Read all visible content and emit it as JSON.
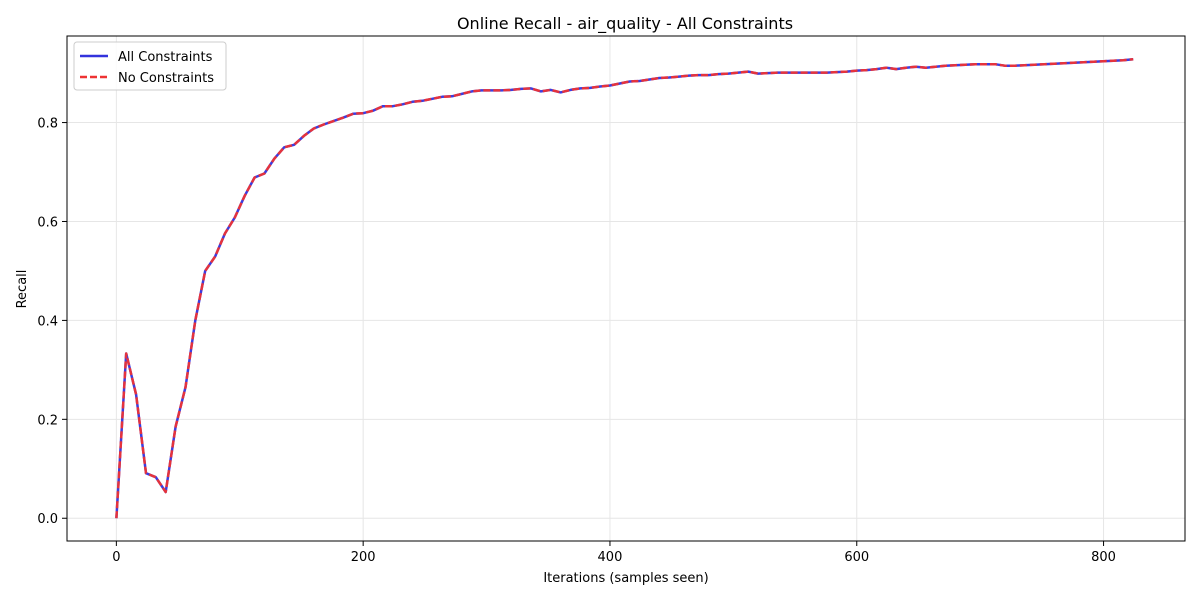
{
  "chart_data": {
    "type": "line",
    "title": "Online Recall - air_quality - All Constraints",
    "xlabel": "Iterations (samples seen)",
    "ylabel": "Recall",
    "xlim": [
      -40,
      866
    ],
    "ylim": [
      -0.046,
      0.975
    ],
    "xticks": [
      0,
      200,
      400,
      600,
      800
    ],
    "yticks": [
      0.0,
      0.2,
      0.4,
      0.6,
      0.8
    ],
    "ytick_labels": [
      "0.0",
      "0.2",
      "0.4",
      "0.6",
      "0.8"
    ],
    "grid": true,
    "legend_position": "upper-left",
    "x": [
      0,
      8,
      16,
      24,
      32,
      40,
      48,
      56,
      64,
      72,
      80,
      88,
      96,
      104,
      112,
      120,
      128,
      136,
      144,
      152,
      160,
      168,
      176,
      184,
      192,
      200,
      208,
      216,
      224,
      232,
      240,
      248,
      256,
      264,
      272,
      280,
      288,
      296,
      304,
      312,
      320,
      328,
      336,
      344,
      352,
      360,
      368,
      376,
      384,
      392,
      400,
      408,
      416,
      424,
      432,
      440,
      448,
      456,
      464,
      472,
      480,
      488,
      496,
      504,
      512,
      520,
      528,
      536,
      544,
      552,
      560,
      568,
      576,
      584,
      592,
      600,
      608,
      616,
      624,
      632,
      640,
      648,
      656,
      664,
      672,
      680,
      688,
      696,
      704,
      712,
      720,
      728,
      736,
      744,
      752,
      760,
      768,
      776,
      784,
      792,
      800,
      808,
      816,
      824
    ],
    "series": [
      {
        "name": "All Constraints",
        "color": "#3333dd",
        "style": "solid",
        "values": [
          0.0,
          0.333,
          0.25,
          0.091,
          0.083,
          0.053,
          0.185,
          0.265,
          0.4,
          0.5,
          0.529,
          0.576,
          0.608,
          0.652,
          0.689,
          0.697,
          0.727,
          0.75,
          0.755,
          0.773,
          0.788,
          0.796,
          0.803,
          0.81,
          0.818,
          0.819,
          0.824,
          0.833,
          0.833,
          0.837,
          0.842,
          0.844,
          0.848,
          0.852,
          0.853,
          0.858,
          0.863,
          0.865,
          0.865,
          0.865,
          0.866,
          0.868,
          0.869,
          0.863,
          0.866,
          0.861,
          0.866,
          0.869,
          0.87,
          0.873,
          0.875,
          0.879,
          0.883,
          0.884,
          0.887,
          0.89,
          0.891,
          0.893,
          0.895,
          0.896,
          0.896,
          0.898,
          0.899,
          0.901,
          0.903,
          0.899,
          0.9,
          0.901,
          0.901,
          0.901,
          0.901,
          0.901,
          0.901,
          0.902,
          0.903,
          0.905,
          0.906,
          0.908,
          0.911,
          0.908,
          0.911,
          0.913,
          0.911,
          0.913,
          0.915,
          0.916,
          0.917,
          0.918,
          0.918,
          0.918,
          0.915,
          0.915,
          0.916,
          0.917,
          0.918,
          0.919,
          0.92,
          0.921,
          0.922,
          0.923,
          0.924,
          0.925,
          0.926,
          0.928
        ]
      },
      {
        "name": "No Constraints",
        "color": "#ee3333",
        "style": "dashed",
        "values": [
          0.0,
          0.333,
          0.25,
          0.091,
          0.083,
          0.053,
          0.185,
          0.265,
          0.4,
          0.5,
          0.529,
          0.576,
          0.608,
          0.652,
          0.689,
          0.697,
          0.727,
          0.75,
          0.755,
          0.773,
          0.788,
          0.796,
          0.803,
          0.81,
          0.818,
          0.819,
          0.824,
          0.833,
          0.833,
          0.837,
          0.842,
          0.844,
          0.848,
          0.852,
          0.853,
          0.858,
          0.863,
          0.865,
          0.865,
          0.865,
          0.866,
          0.868,
          0.869,
          0.863,
          0.866,
          0.861,
          0.866,
          0.869,
          0.87,
          0.873,
          0.875,
          0.879,
          0.883,
          0.884,
          0.887,
          0.89,
          0.891,
          0.893,
          0.895,
          0.896,
          0.896,
          0.898,
          0.899,
          0.901,
          0.903,
          0.899,
          0.9,
          0.901,
          0.901,
          0.901,
          0.901,
          0.901,
          0.901,
          0.902,
          0.903,
          0.905,
          0.906,
          0.908,
          0.911,
          0.908,
          0.911,
          0.913,
          0.911,
          0.913,
          0.915,
          0.916,
          0.917,
          0.918,
          0.918,
          0.918,
          0.915,
          0.915,
          0.916,
          0.917,
          0.918,
          0.919,
          0.92,
          0.921,
          0.922,
          0.923,
          0.924,
          0.925,
          0.926,
          0.928
        ]
      }
    ]
  }
}
